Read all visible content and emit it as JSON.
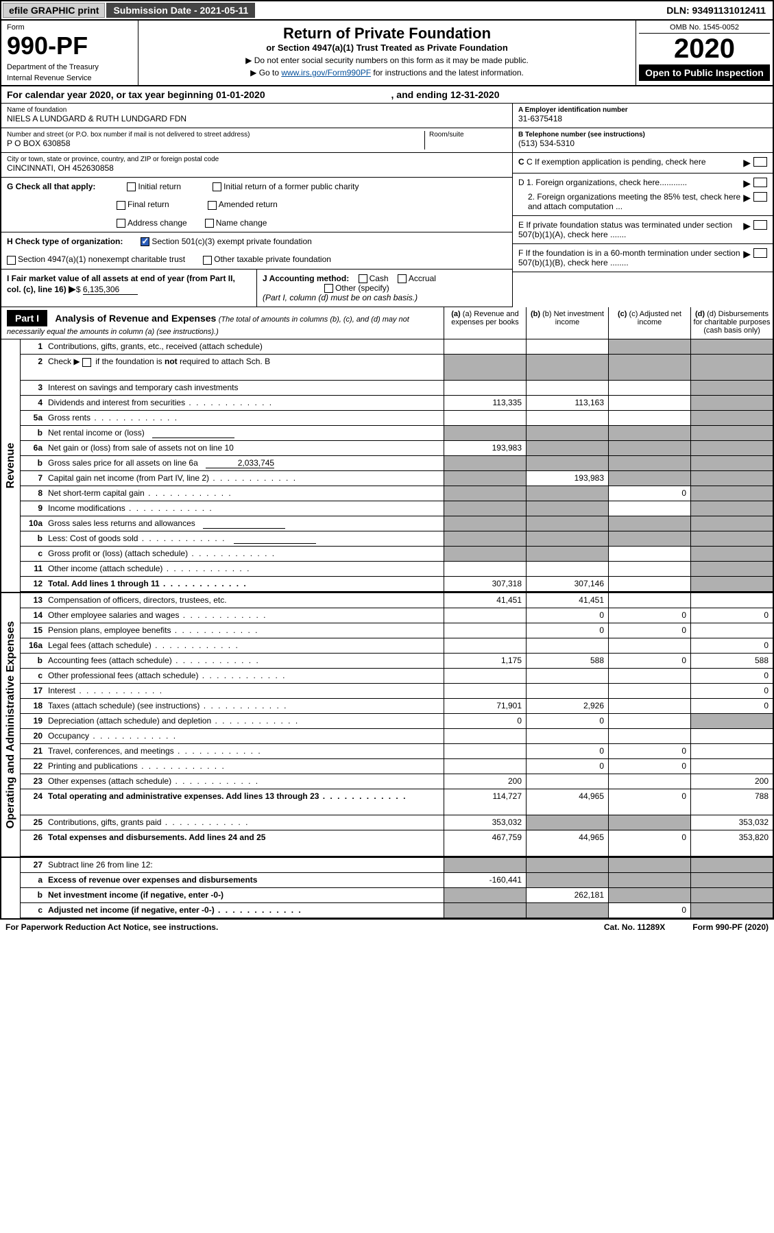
{
  "top_bar": {
    "efile": "efile GRAPHIC print",
    "sub_date_label": "Submission Date - 2021-05-11",
    "dln": "DLN: 93491131012411"
  },
  "header": {
    "form_label": "Form",
    "form_number": "990-PF",
    "dept1": "Department of the Treasury",
    "dept2": "Internal Revenue Service",
    "title": "Return of Private Foundation",
    "subtitle": "or Section 4947(a)(1) Trust Treated as Private Foundation",
    "note1": "▶ Do not enter social security numbers on this form as it may be made public.",
    "note2_pre": "▶ Go to ",
    "note2_link": "www.irs.gov/Form990PF",
    "note2_post": " for instructions and the latest information.",
    "omb": "OMB No. 1545-0052",
    "year": "2020",
    "open_public": "Open to Public Inspection"
  },
  "cal_year": {
    "pre": "For calendar year 2020, or tax year beginning ",
    "begin": "01-01-2020",
    "mid": ", and ending ",
    "end": "12-31-2020"
  },
  "foundation": {
    "name_label": "Name of foundation",
    "name": "NIELS A LUNDGARD & RUTH LUNDGARD FDN",
    "addr_label": "Number and street (or P.O. box number if mail is not delivered to street address)",
    "room_label": "Room/suite",
    "addr": "P O BOX 630858",
    "city_label": "City or town, state or province, country, and ZIP or foreign postal code",
    "city": "CINCINNATI, OH  452630858"
  },
  "right_info": {
    "a_label": "A Employer identification number",
    "a_val": "31-6375418",
    "b_label": "B Telephone number (see instructions)",
    "b_val": "(513) 534-5310",
    "c_label": "C If exemption application is pending, check here",
    "d1": "D 1. Foreign organizations, check here............",
    "d2": "2. Foreign organizations meeting the 85% test, check here and attach computation ...",
    "e": "E  If private foundation status was terminated under section 507(b)(1)(A), check here .......",
    "f": "F  If the foundation is in a 60-month termination under section 507(b)(1)(B), check here ........"
  },
  "g_checks": {
    "label": "G Check all that apply:",
    "initial": "Initial return",
    "initial_former": "Initial return of a former public charity",
    "final": "Final return",
    "amended": "Amended return",
    "addr_change": "Address change",
    "name_change": "Name change"
  },
  "h_checks": {
    "label": "H Check type of organization:",
    "c3": "Section 501(c)(3) exempt private foundation",
    "trust": "Section 4947(a)(1) nonexempt charitable trust",
    "other": "Other taxable private foundation"
  },
  "i_j": {
    "i_label": "I Fair market value of all assets at end of year (from Part II, col. (c), line 16)",
    "i_val": "6,135,306",
    "j_label": "J Accounting method:",
    "cash": "Cash",
    "accrual": "Accrual",
    "other": "Other (specify)",
    "note": "(Part I, column (d) must be on cash basis.)"
  },
  "part1": {
    "label": "Part I",
    "title": "Analysis of Revenue and Expenses",
    "subtitle": "(The total of amounts in columns (b), (c), and (d) may not necessarily equal the amounts in column (a) (see instructions).)",
    "col_a": "(a) Revenue and expenses per books",
    "col_b": "(b) Net investment income",
    "col_c": "(c) Adjusted net income",
    "col_d": "(d) Disbursements for charitable purposes (cash basis only)"
  },
  "sections": {
    "revenue": "Revenue",
    "expenses": "Operating and Administrative Expenses"
  },
  "rows": [
    {
      "n": "1",
      "d": "Contributions, gifts, grants, etc., received (attach schedule)",
      "a": "",
      "b": "",
      "c": "sh",
      "dd": "sh"
    },
    {
      "n": "2",
      "d": "Check ▶ ☐ if the foundation is not required to attach Sch. B",
      "a": "sh",
      "b": "sh",
      "c": "sh",
      "dd": "sh",
      "tall": true,
      "html": true
    },
    {
      "n": "3",
      "d": "Interest on savings and temporary cash investments",
      "a": "",
      "b": "",
      "c": "",
      "dd": "sh"
    },
    {
      "n": "4",
      "d": "Dividends and interest from securities",
      "a": "113,335",
      "b": "113,163",
      "c": "",
      "dd": "sh",
      "dots": true
    },
    {
      "n": "5a",
      "d": "Gross rents",
      "a": "",
      "b": "",
      "c": "",
      "dd": "sh",
      "dots": true
    },
    {
      "n": "b",
      "d": "Net rental income or (loss)",
      "a": "sh",
      "b": "sh",
      "c": "sh",
      "dd": "sh",
      "inline": true
    },
    {
      "n": "6a",
      "d": "Net gain or (loss) from sale of assets not on line 10",
      "a": "193,983",
      "b": "sh",
      "c": "sh",
      "dd": "sh"
    },
    {
      "n": "b",
      "d": "Gross sales price for all assets on line 6a",
      "a": "sh",
      "b": "sh",
      "c": "sh",
      "dd": "sh",
      "inline_val": "2,033,745"
    },
    {
      "n": "7",
      "d": "Capital gain net income (from Part IV, line 2)",
      "a": "sh",
      "b": "193,983",
      "c": "sh",
      "dd": "sh",
      "dots": true
    },
    {
      "n": "8",
      "d": "Net short-term capital gain",
      "a": "sh",
      "b": "sh",
      "c": "0",
      "dd": "sh",
      "dots": true
    },
    {
      "n": "9",
      "d": "Income modifications",
      "a": "sh",
      "b": "sh",
      "c": "",
      "dd": "sh",
      "dots": true
    },
    {
      "n": "10a",
      "d": "Gross sales less returns and allowances",
      "a": "sh",
      "b": "sh",
      "c": "sh",
      "dd": "sh",
      "inline": true
    },
    {
      "n": "b",
      "d": "Less: Cost of goods sold",
      "a": "sh",
      "b": "sh",
      "c": "sh",
      "dd": "sh",
      "inline": true,
      "dots": true
    },
    {
      "n": "c",
      "d": "Gross profit or (loss) (attach schedule)",
      "a": "sh",
      "b": "sh",
      "c": "",
      "dd": "sh",
      "dots": true
    },
    {
      "n": "11",
      "d": "Other income (attach schedule)",
      "a": "",
      "b": "",
      "c": "",
      "dd": "sh",
      "dots": true
    },
    {
      "n": "12",
      "d": "Total. Add lines 1 through 11",
      "a": "307,318",
      "b": "307,146",
      "c": "",
      "dd": "sh",
      "bold": true,
      "dots": true
    }
  ],
  "exp_rows": [
    {
      "n": "13",
      "d": "Compensation of officers, directors, trustees, etc.",
      "a": "41,451",
      "b": "41,451",
      "c": "",
      "dd": ""
    },
    {
      "n": "14",
      "d": "Other employee salaries and wages",
      "a": "",
      "b": "0",
      "c": "0",
      "dd": "0",
      "dots": true
    },
    {
      "n": "15",
      "d": "Pension plans, employee benefits",
      "a": "",
      "b": "0",
      "c": "0",
      "dd": "",
      "dots": true
    },
    {
      "n": "16a",
      "d": "Legal fees (attach schedule)",
      "a": "",
      "b": "",
      "c": "",
      "dd": "0",
      "dots": true
    },
    {
      "n": "b",
      "d": "Accounting fees (attach schedule)",
      "a": "1,175",
      "b": "588",
      "c": "0",
      "dd": "588",
      "dots": true
    },
    {
      "n": "c",
      "d": "Other professional fees (attach schedule)",
      "a": "",
      "b": "",
      "c": "",
      "dd": "0",
      "dots": true
    },
    {
      "n": "17",
      "d": "Interest",
      "a": "",
      "b": "",
      "c": "",
      "dd": "0",
      "dots": true
    },
    {
      "n": "18",
      "d": "Taxes (attach schedule) (see instructions)",
      "a": "71,901",
      "b": "2,926",
      "c": "",
      "dd": "0",
      "dots": true
    },
    {
      "n": "19",
      "d": "Depreciation (attach schedule) and depletion",
      "a": "0",
      "b": "0",
      "c": "",
      "dd": "sh",
      "dots": true
    },
    {
      "n": "20",
      "d": "Occupancy",
      "a": "",
      "b": "",
      "c": "",
      "dd": "",
      "dots": true
    },
    {
      "n": "21",
      "d": "Travel, conferences, and meetings",
      "a": "",
      "b": "0",
      "c": "0",
      "dd": "",
      "dots": true
    },
    {
      "n": "22",
      "d": "Printing and publications",
      "a": "",
      "b": "0",
      "c": "0",
      "dd": "",
      "dots": true
    },
    {
      "n": "23",
      "d": "Other expenses (attach schedule)",
      "a": "200",
      "b": "",
      "c": "",
      "dd": "200",
      "dots": true
    },
    {
      "n": "24",
      "d": "Total operating and administrative expenses. Add lines 13 through 23",
      "a": "114,727",
      "b": "44,965",
      "c": "0",
      "dd": "788",
      "bold": true,
      "tall": true,
      "dots": true
    },
    {
      "n": "25",
      "d": "Contributions, gifts, grants paid",
      "a": "353,032",
      "b": "sh",
      "c": "sh",
      "dd": "353,032",
      "dots": true
    },
    {
      "n": "26",
      "d": "Total expenses and disbursements. Add lines 24 and 25",
      "a": "467,759",
      "b": "44,965",
      "c": "0",
      "dd": "353,820",
      "bold": true,
      "tall": true
    }
  ],
  "bottom_rows": [
    {
      "n": "27",
      "d": "Subtract line 26 from line 12:",
      "a": "sh",
      "b": "sh",
      "c": "sh",
      "dd": "sh"
    },
    {
      "n": "a",
      "d": "Excess of revenue over expenses and disbursements",
      "a": "-160,441",
      "b": "sh",
      "c": "sh",
      "dd": "sh",
      "bold": true
    },
    {
      "n": "b",
      "d": "Net investment income (if negative, enter -0-)",
      "a": "sh",
      "b": "262,181",
      "c": "sh",
      "dd": "sh",
      "bold": true
    },
    {
      "n": "c",
      "d": "Adjusted net income (if negative, enter -0-)",
      "a": "sh",
      "b": "sh",
      "c": "0",
      "dd": "sh",
      "bold": true,
      "dots": true
    }
  ],
  "footer": {
    "left": "For Paperwork Reduction Act Notice, see instructions.",
    "mid": "Cat. No. 11289X",
    "right": "Form 990-PF (2020)"
  },
  "colors": {
    "shaded": "#b0b0b0",
    "header_bg": "#000000",
    "link": "#004d99"
  }
}
